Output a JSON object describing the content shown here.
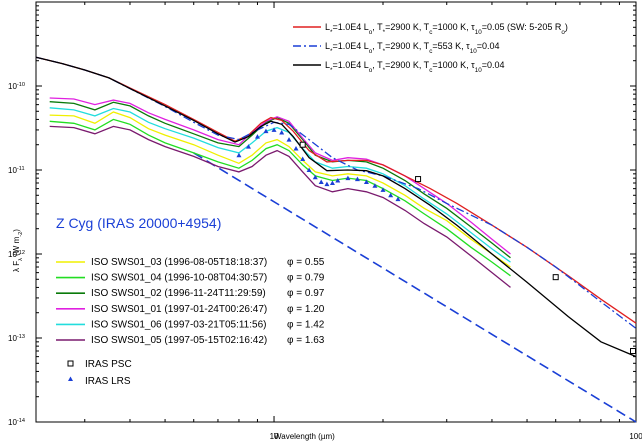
{
  "chart_data": {
    "type": "line",
    "xscale": "log",
    "yscale": "log",
    "xlim": [
      2.2,
      100
    ],
    "ylim": [
      1e-14,
      1e-09
    ],
    "xlabel": "Wavelength (µm)",
    "ylabel_parts": [
      "λ F",
      "λ",
      " (W m",
      "-2",
      ")"
    ],
    "x_ticks": [
      {
        "value": 10,
        "label": "10"
      },
      {
        "value": 100,
        "label": "100"
      }
    ],
    "y_ticks": [
      {
        "value": 1e-10,
        "base": "10",
        "exp": "-10"
      },
      {
        "value": 1e-11,
        "base": "10",
        "exp": "-11"
      },
      {
        "value": 1e-12,
        "base": "10",
        "exp": "-12"
      },
      {
        "value": 1e-13,
        "base": "10",
        "exp": "-13"
      },
      {
        "value": 1e-14,
        "base": "10",
        "exp": "-14"
      }
    ],
    "object_label": "Z Cyg  (IRAS 20000+4954)",
    "colors": {
      "red": "#e02020",
      "blue": "#1a3fd6",
      "black": "#000000"
    },
    "model_series": [
      {
        "name_parts": [
          "L",
          "*",
          "=1.0E4 L",
          "o",
          ", T",
          "*",
          "=2900 K, T",
          "c",
          "=1000 K, τ",
          "10",
          "=0.05 (SW: 5-205 R",
          "o",
          ")"
        ],
        "color": "#e02020",
        "dash": "none",
        "x": [
          2.2,
          2.6,
          3.0,
          3.5,
          4.0,
          5.0,
          6.0,
          7.0,
          7.8,
          8.5,
          9.2,
          9.8,
          10.5,
          11.3,
          12.5,
          14.0,
          16.0,
          18.0,
          20.0,
          23.0,
          27.0,
          32.0,
          40.0,
          50.0,
          65.0,
          80.0,
          100.0
        ],
        "y": [
          2.2e-10,
          1.85e-10,
          1.55e-10,
          1.25e-10,
          9.5e-11,
          6e-11,
          4e-11,
          2.8e-11,
          2.2e-11,
          2.6e-11,
          3.6e-11,
          4.2e-11,
          3.9e-11,
          2.9e-11,
          1.7e-11,
          1.25e-11,
          1.3e-11,
          1.3e-11,
          1.15e-11,
          8.5e-12,
          6e-12,
          4e-12,
          2.2e-12,
          1.2e-12,
          5.5e-13,
          2.9e-13,
          1.5e-13
        ]
      },
      {
        "name_parts": [
          "L",
          "*",
          "=1.0E4 L",
          "o",
          ", T",
          "*",
          "=2900 K, T",
          "c",
          "=553 K, τ",
          "10",
          "=0.04"
        ],
        "color": "#1a3fd6",
        "dash": "8,3,2,3",
        "x": [
          2.2,
          2.6,
          3.0,
          3.5,
          4.0,
          5.0,
          6.0,
          7.0,
          8.0,
          9.0,
          10.0,
          11.0,
          12.5,
          14.5,
          17.0,
          20.0,
          25.0,
          30.0,
          40.0,
          50.0,
          60.0,
          70.0,
          80.0,
          100.0
        ],
        "y": [
          2.2e-10,
          1.85e-10,
          1.55e-10,
          1.25e-10,
          9.3e-11,
          5.7e-11,
          3.7e-11,
          2.6e-11,
          2.3e-11,
          3e-11,
          3.7e-11,
          3.5e-11,
          2.3e-11,
          1.4e-11,
          1e-11,
          8.5e-12,
          6e-12,
          4e-12,
          2.2e-12,
          1.2e-12,
          7e-13,
          4.2e-13,
          2.7e-13,
          1.3e-13
        ]
      },
      {
        "name_parts": [
          "L",
          "*",
          "=1.0E4 L",
          "o",
          ", T",
          "*",
          "=2900 K, T",
          "c",
          "=1000 K, τ",
          "10",
          "=0.04"
        ],
        "color": "#000000",
        "dash": "none",
        "x": [
          2.2,
          2.6,
          3.0,
          3.5,
          4.0,
          5.0,
          6.0,
          7.0,
          7.8,
          8.5,
          9.2,
          9.8,
          10.5,
          11.3,
          12.5,
          14.0,
          16.0,
          18.0,
          20.0,
          23.0,
          27.0,
          32.0,
          40.0,
          50.0,
          65.0,
          80.0,
          100.0
        ],
        "y": [
          2.2e-10,
          1.85e-10,
          1.55e-10,
          1.25e-10,
          9.3e-11,
          5.8e-11,
          3.9e-11,
          2.7e-11,
          2.15e-11,
          2.5e-11,
          3.3e-11,
          3.8e-11,
          3.5e-11,
          2.5e-11,
          1.4e-11,
          9.8e-12,
          1e-11,
          9.8e-12,
          8.5e-12,
          6e-12,
          3.8e-12,
          2.2e-12,
          1e-12,
          4.6e-13,
          1.8e-13,
          9e-14,
          6e-14
        ]
      }
    ],
    "reference_line": {
      "color": "#1a3fd6",
      "dash": "10,5",
      "x": [
        6.0,
        100.0
      ],
      "y": [
        1.6e-11,
        1e-14
      ]
    },
    "observation_series": [
      {
        "name": "ISO SWS01_03 (1996-08-05T18:18:37)",
        "phase": "φ = 0.55",
        "color": "#f0f000",
        "x": [
          2.4,
          2.8,
          3.2,
          3.6,
          4.0,
          4.5,
          5.0,
          6.0,
          7.0,
          8.0,
          8.7,
          9.5,
          10.2,
          11.0,
          12.0,
          13.0,
          14.5,
          16.0,
          18.0,
          20.0,
          23.0,
          26.0,
          30.0,
          35.0,
          40.0,
          45.0
        ],
        "y": [
          4.5e-11,
          4.4e-11,
          3.6e-11,
          4.9e-11,
          4.2e-11,
          3.1e-11,
          2.6e-11,
          2e-11,
          1.5e-11,
          1.2e-11,
          1.5e-11,
          2.1e-11,
          2.3e-11,
          1.9e-11,
          1.3e-11,
          9.5e-12,
          8.5e-12,
          9e-12,
          8.5e-12,
          7e-12,
          5e-12,
          3.5e-12,
          2.5e-12,
          1.5e-12,
          1e-12,
          7e-13
        ]
      },
      {
        "name": "ISO SWS01_04 (1996-10-08T04:30:57)",
        "phase": "φ = 0.79",
        "color": "#22dd22",
        "x": [
          2.4,
          2.8,
          3.2,
          3.6,
          4.0,
          4.5,
          5.0,
          6.0,
          7.0,
          8.0,
          8.7,
          9.5,
          10.2,
          11.0,
          12.0,
          13.0,
          14.5,
          16.0,
          18.0,
          20.0,
          23.0,
          26.0,
          30.0,
          35.0,
          40.0,
          45.0
        ],
        "y": [
          3.8e-11,
          3.6e-11,
          3e-11,
          4e-11,
          3.5e-11,
          2.6e-11,
          2.1e-11,
          1.6e-11,
          1.25e-11,
          1.05e-11,
          1.3e-11,
          1.8e-11,
          2e-11,
          1.7e-11,
          1.15e-11,
          8.5e-12,
          7.5e-12,
          8e-12,
          7.5e-12,
          6e-12,
          4.3e-12,
          3e-12,
          2e-12,
          1.2e-12,
          8e-13,
          5.5e-13
        ]
      },
      {
        "name": "ISO SWS01_02 (1996-11-24T11:29:59)",
        "phase": "φ = 0.97",
        "color": "#0a7a0a",
        "x": [
          2.4,
          2.8,
          3.2,
          3.6,
          4.0,
          4.5,
          5.0,
          6.0,
          7.0,
          8.0,
          8.7,
          9.5,
          10.2,
          11.0,
          12.0,
          13.0,
          14.5,
          16.0,
          18.0,
          20.0,
          23.0,
          26.0,
          30.0,
          35.0,
          40.0,
          45.0
        ],
        "y": [
          6.5e-11,
          6.2e-11,
          5.2e-11,
          6.4e-11,
          5.8e-11,
          4.4e-11,
          3.6e-11,
          2.7e-11,
          2.1e-11,
          1.9e-11,
          2.6e-11,
          3.7e-11,
          4.2e-11,
          3.6e-11,
          2.3e-11,
          1.5e-11,
          1.25e-11,
          1.3e-11,
          1.25e-11,
          1.05e-11,
          7.5e-12,
          5.2e-12,
          3.5e-12,
          2.1e-12,
          1.35e-12,
          9e-13
        ]
      },
      {
        "name": "ISO SWS01_01 (1997-01-24T00:26:47)",
        "phase": "φ = 1.20",
        "color": "#e020e0",
        "x": [
          2.4,
          2.8,
          3.2,
          3.6,
          4.0,
          4.5,
          5.0,
          6.0,
          7.0,
          8.0,
          8.7,
          9.5,
          10.2,
          11.0,
          12.0,
          13.0,
          14.5,
          16.0,
          18.0,
          20.0,
          23.0,
          26.0,
          30.0,
          35.0,
          40.0,
          45.0
        ],
        "y": [
          7.2e-11,
          7e-11,
          6e-11,
          6.8e-11,
          6.2e-11,
          4.8e-11,
          4e-11,
          3e-11,
          2.3e-11,
          2e-11,
          2.8e-11,
          3.8e-11,
          4.3e-11,
          3.8e-11,
          2.4e-11,
          1.6e-11,
          1.3e-11,
          1.4e-11,
          1.35e-11,
          1.15e-11,
          8.5e-12,
          6e-12,
          4e-12,
          2.4e-12,
          1.5e-12,
          1e-12
        ]
      },
      {
        "name": "ISO SWS01_06 (1997-03-21T05:11:56)",
        "phase": "φ = 1.42",
        "color": "#22dddd",
        "x": [
          2.4,
          2.8,
          3.2,
          3.6,
          4.0,
          4.5,
          5.0,
          6.0,
          7.0,
          8.0,
          8.7,
          9.5,
          10.2,
          11.0,
          12.0,
          13.0,
          14.5,
          16.0,
          18.0,
          20.0,
          23.0,
          26.0,
          30.0,
          35.0,
          40.0,
          45.0
        ],
        "y": [
          5.5e-11,
          5.2e-11,
          4.4e-11,
          5.4e-11,
          4.9e-11,
          3.7e-11,
          3.1e-11,
          2.4e-11,
          1.85e-11,
          1.6e-11,
          2.1e-11,
          2.9e-11,
          3.2e-11,
          2.8e-11,
          1.8e-11,
          1.25e-11,
          1.05e-11,
          1.1e-11,
          1.05e-11,
          9e-12,
          6.5e-12,
          4.5e-12,
          3e-12,
          1.8e-12,
          1.15e-12,
          8e-13
        ]
      },
      {
        "name": "ISO SWS01_05 (1997-05-15T02:16:42)",
        "phase": "φ = 1.63",
        "color": "#7a1a6e",
        "x": [
          2.4,
          2.8,
          3.2,
          3.6,
          4.0,
          4.5,
          5.0,
          6.0,
          7.0,
          8.0,
          8.7,
          9.5,
          10.2,
          11.0,
          12.0,
          13.0,
          14.5,
          16.0,
          18.0,
          20.0,
          23.0,
          26.0,
          30.0,
          35.0,
          40.0,
          45.0
        ],
        "y": [
          3.3e-11,
          3.2e-11,
          2.7e-11,
          3.3e-11,
          3e-11,
          2.3e-11,
          1.9e-11,
          1.45e-11,
          1.1e-11,
          9.5e-12,
          1.1e-11,
          1.5e-11,
          1.7e-11,
          1.45e-11,
          9.5e-12,
          6.5e-12,
          5.5e-12,
          6e-12,
          5.5e-12,
          4.7e-12,
          3.3e-12,
          2.3e-12,
          1.6e-12,
          9.5e-13,
          6e-13,
          4e-13
        ]
      }
    ],
    "iras_psc": {
      "name": "IRAS PSC",
      "x": [
        12.0,
        25.0,
        60.0,
        100.0
      ],
      "y": [
        2e-11,
        7.8e-12,
        5.3e-13,
        7e-14
      ]
    },
    "iras_lrs": {
      "name": "IRAS LRS",
      "color": "#1a3fd6",
      "x": [
        8.0,
        8.5,
        9.0,
        9.5,
        10.0,
        10.5,
        11.0,
        11.5,
        12.0,
        12.5,
        13.0,
        13.5,
        14.0,
        14.5,
        15.0,
        16.0,
        17.0,
        18.0,
        19.0,
        20.0,
        21.0,
        22.0
      ],
      "y": [
        1.5e-11,
        1.9e-11,
        2.5e-11,
        2.9e-11,
        3e-11,
        2.8e-11,
        2.3e-11,
        1.8e-11,
        1.35e-11,
        1e-11,
        8.2e-12,
        7.2e-12,
        6.8e-12,
        7e-12,
        7.5e-12,
        8e-12,
        7.8e-12,
        7.2e-12,
        6.5e-12,
        5.8e-12,
        5e-12,
        4.5e-12
      ]
    }
  }
}
